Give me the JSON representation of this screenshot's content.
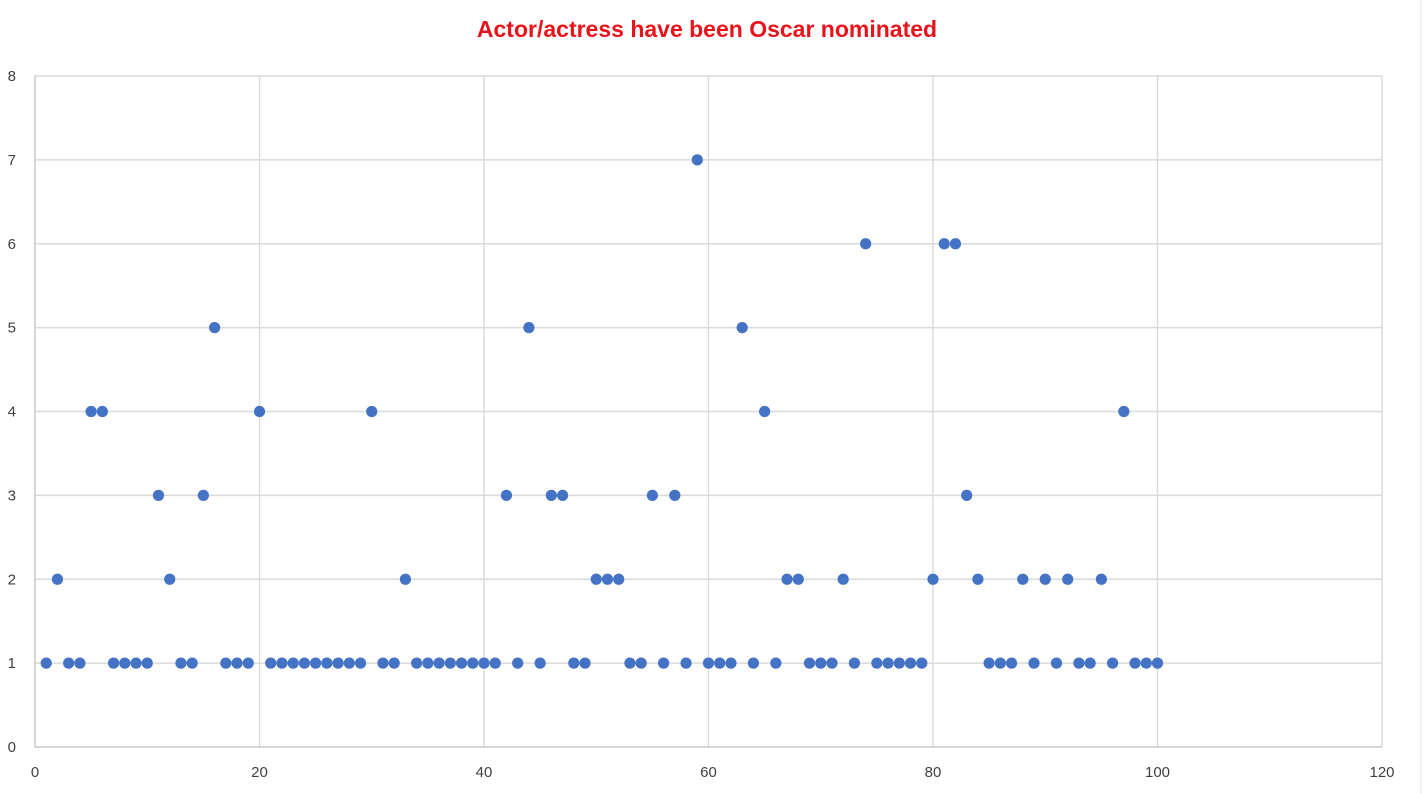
{
  "chart_data": {
    "type": "scatter",
    "title": "Actor/actress have been Oscar nominated",
    "xlabel": "",
    "ylabel": "",
    "xlim": [
      0,
      120
    ],
    "ylim": [
      0,
      8
    ],
    "x_ticks": [
      0,
      20,
      40,
      60,
      80,
      100,
      120
    ],
    "y_ticks": [
      0,
      1,
      2,
      3,
      4,
      5,
      6,
      7,
      8
    ],
    "grid": true,
    "legend": "none",
    "series": [
      {
        "color": "#4472c4",
        "points": [
          [
            1,
            1
          ],
          [
            2,
            2
          ],
          [
            3,
            1
          ],
          [
            4,
            1
          ],
          [
            5,
            4
          ],
          [
            6,
            4
          ],
          [
            7,
            1
          ],
          [
            8,
            1
          ],
          [
            9,
            1
          ],
          [
            10,
            1
          ],
          [
            11,
            3
          ],
          [
            12,
            2
          ],
          [
            13,
            1
          ],
          [
            14,
            1
          ],
          [
            15,
            3
          ],
          [
            16,
            5
          ],
          [
            17,
            1
          ],
          [
            18,
            1
          ],
          [
            19,
            1
          ],
          [
            20,
            4
          ],
          [
            21,
            1
          ],
          [
            22,
            1
          ],
          [
            23,
            1
          ],
          [
            24,
            1
          ],
          [
            25,
            1
          ],
          [
            26,
            1
          ],
          [
            27,
            1
          ],
          [
            28,
            1
          ],
          [
            29,
            1
          ],
          [
            30,
            4
          ],
          [
            31,
            1
          ],
          [
            32,
            1
          ],
          [
            33,
            2
          ],
          [
            34,
            1
          ],
          [
            35,
            1
          ],
          [
            36,
            1
          ],
          [
            37,
            1
          ],
          [
            38,
            1
          ],
          [
            39,
            1
          ],
          [
            40,
            1
          ],
          [
            41,
            1
          ],
          [
            42,
            3
          ],
          [
            43,
            1
          ],
          [
            44,
            5
          ],
          [
            45,
            1
          ],
          [
            46,
            3
          ],
          [
            47,
            3
          ],
          [
            48,
            1
          ],
          [
            49,
            1
          ],
          [
            50,
            2
          ],
          [
            51,
            2
          ],
          [
            52,
            2
          ],
          [
            53,
            1
          ],
          [
            54,
            1
          ],
          [
            55,
            3
          ],
          [
            56,
            1
          ],
          [
            57,
            3
          ],
          [
            58,
            1
          ],
          [
            59,
            7
          ],
          [
            60,
            1
          ],
          [
            61,
            1
          ],
          [
            62,
            1
          ],
          [
            63,
            5
          ],
          [
            64,
            1
          ],
          [
            65,
            4
          ],
          [
            66,
            1
          ],
          [
            67,
            2
          ],
          [
            68,
            2
          ],
          [
            69,
            1
          ],
          [
            70,
            1
          ],
          [
            71,
            1
          ],
          [
            72,
            2
          ],
          [
            73,
            1
          ],
          [
            74,
            6
          ],
          [
            75,
            1
          ],
          [
            76,
            1
          ],
          [
            77,
            1
          ],
          [
            78,
            1
          ],
          [
            79,
            1
          ],
          [
            80,
            2
          ],
          [
            81,
            6
          ],
          [
            82,
            6
          ],
          [
            83,
            3
          ],
          [
            84,
            2
          ],
          [
            85,
            1
          ],
          [
            86,
            1
          ],
          [
            87,
            1
          ],
          [
            88,
            2
          ],
          [
            89,
            1
          ],
          [
            90,
            2
          ],
          [
            91,
            1
          ],
          [
            92,
            2
          ],
          [
            93,
            1
          ],
          [
            94,
            1
          ],
          [
            95,
            2
          ],
          [
            96,
            1
          ],
          [
            97,
            4
          ],
          [
            98,
            1
          ],
          [
            99,
            1
          ],
          [
            100,
            1
          ]
        ]
      }
    ],
    "colors": {
      "title": "#e8141c",
      "marker": "#4472c4",
      "gridline": "#d9d9d9",
      "tick_text": "#404040"
    }
  }
}
